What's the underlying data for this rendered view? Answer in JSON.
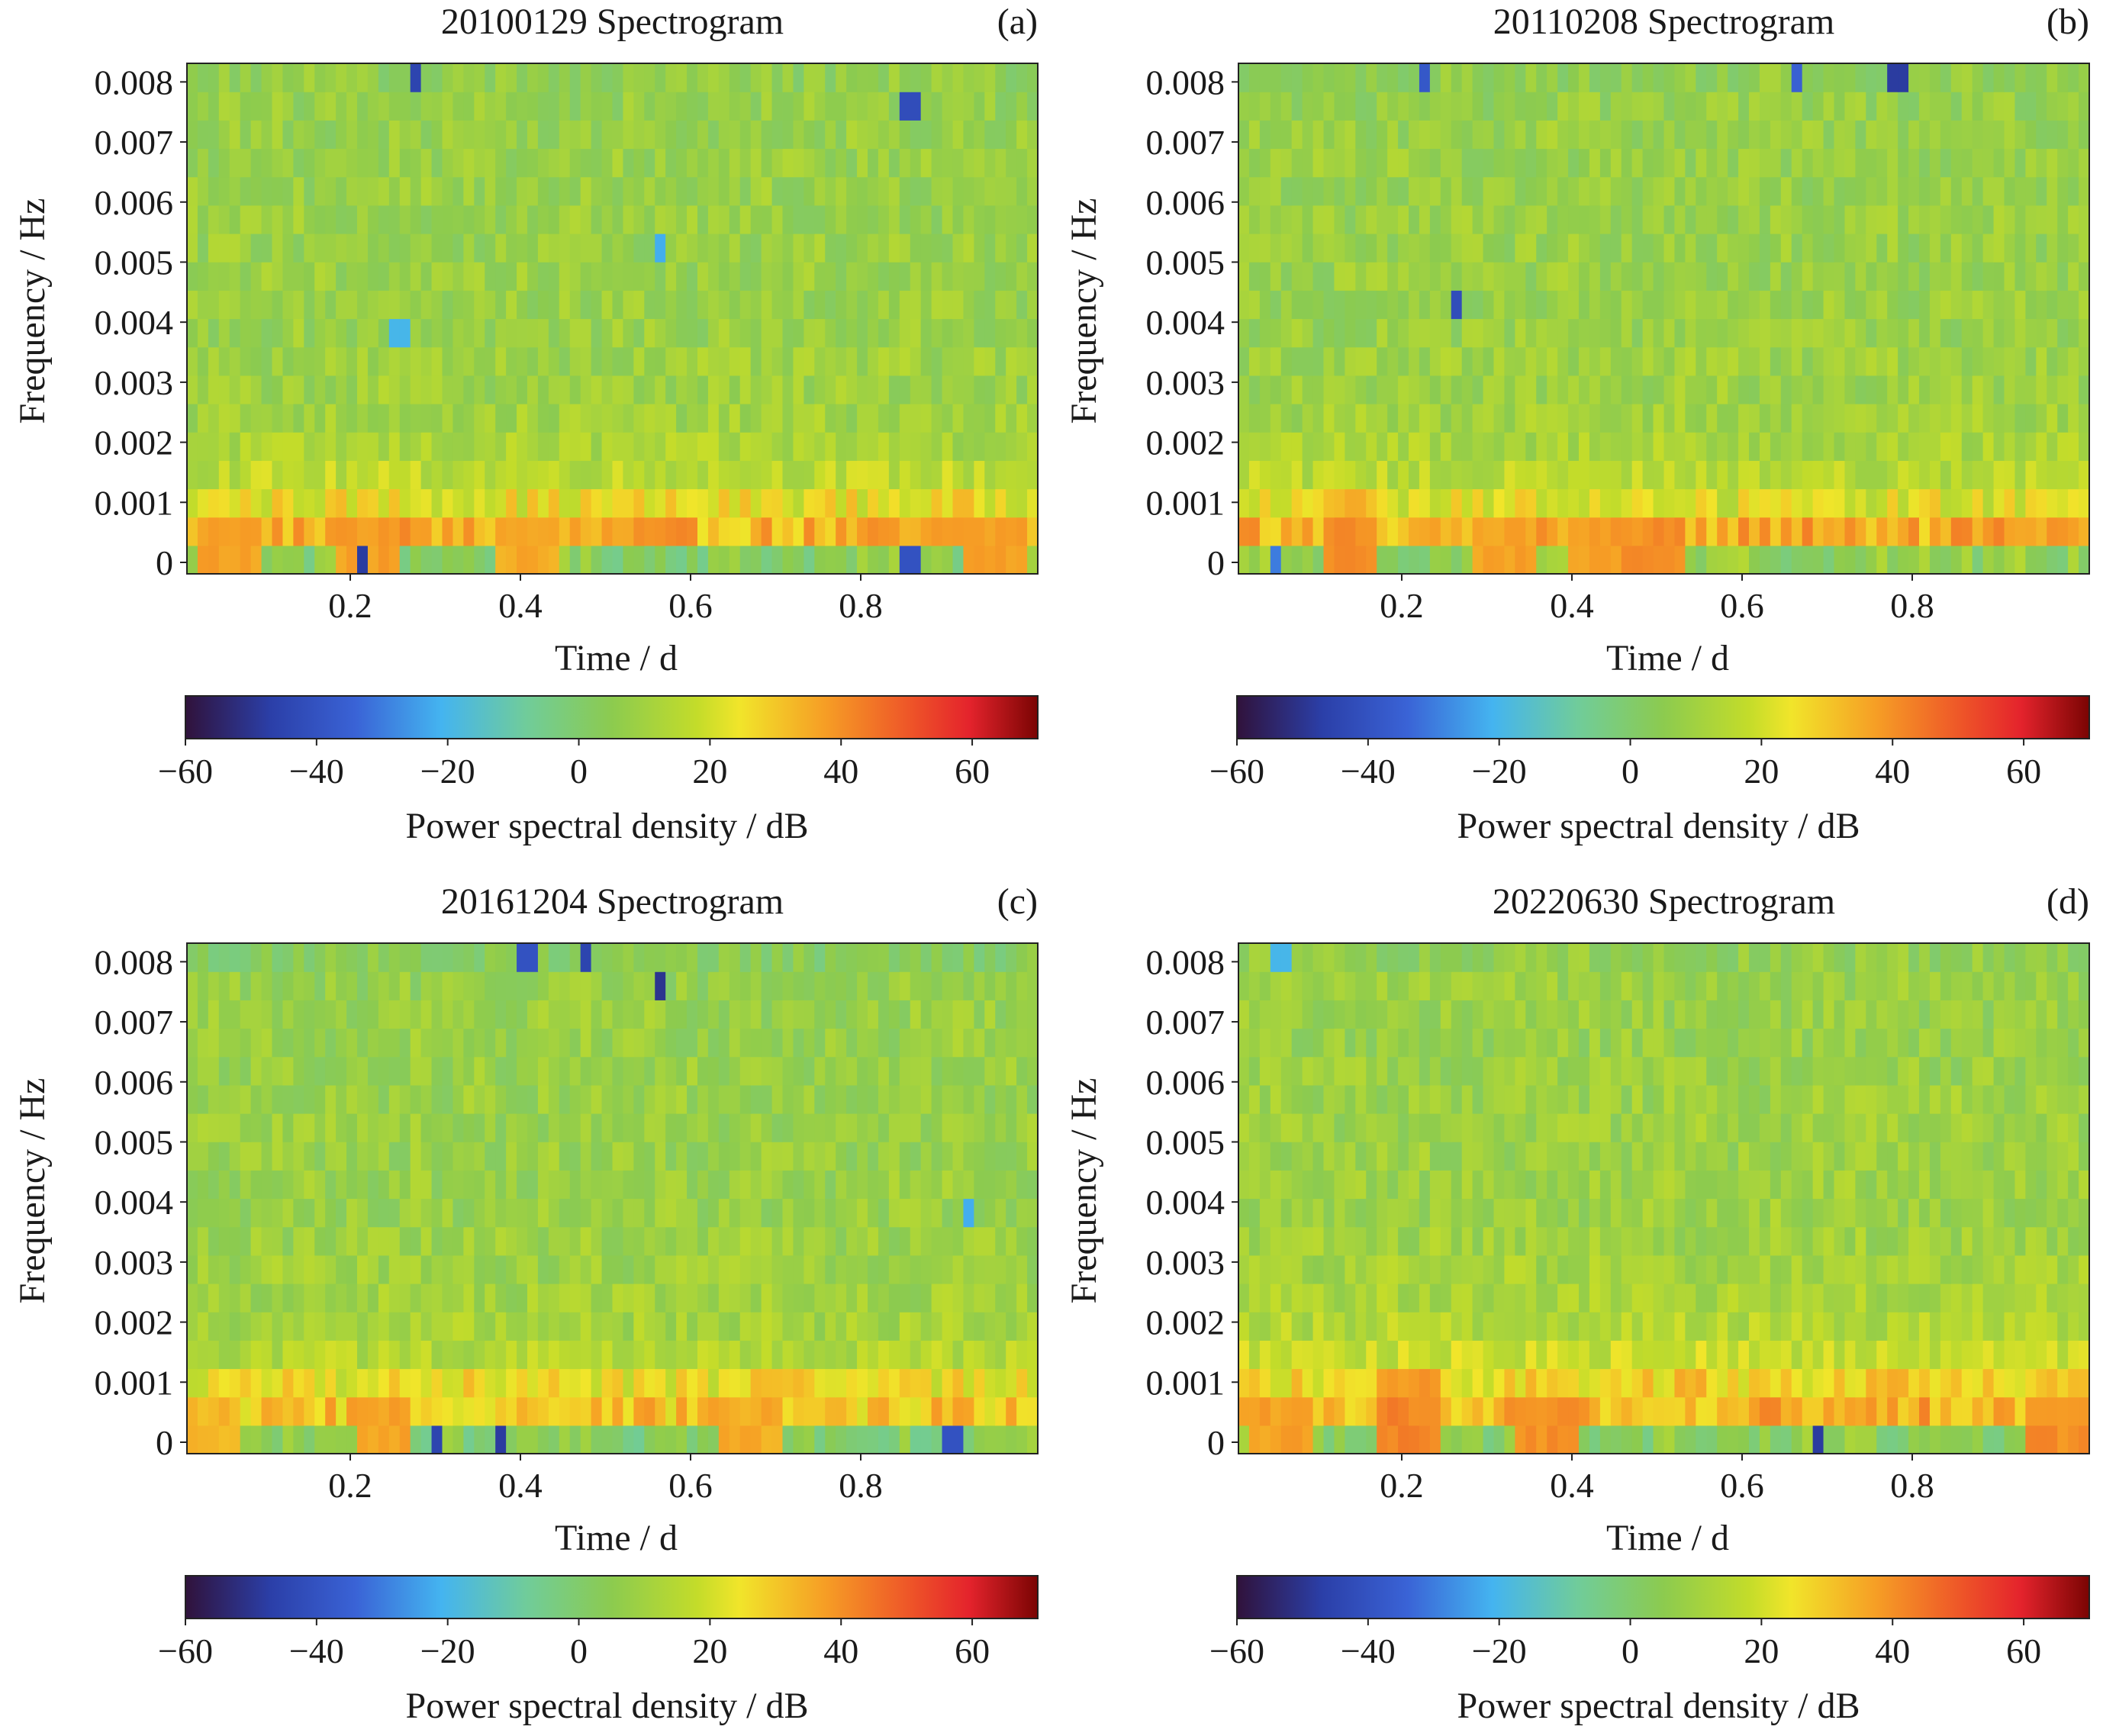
{
  "figure": {
    "colorbar_label": "Power spectral density / dB",
    "colorbar_ticks": [
      -60,
      -40,
      -20,
      0,
      20,
      40,
      60
    ],
    "colorbar_range": [
      -60,
      70
    ],
    "colormap": "turbo-like",
    "x_tick_values": [
      0.2,
      0.4,
      0.6,
      0.8
    ],
    "y_tick_values": [
      0,
      0.001,
      0.002,
      0.003,
      0.004,
      0.005,
      0.006,
      0.007,
      0.008
    ]
  },
  "chart_data": [
    {
      "type": "heatmap",
      "panel_label": "(a)",
      "title": "20100129 Spectrogram",
      "xlabel": "Time / d",
      "ylabel": "Frequency / Hz",
      "xlim": [
        0,
        1
      ],
      "ylim": [
        0,
        0.0085
      ],
      "n_time_bins": 80,
      "n_freq_bins": 18,
      "row_means_db": [
        3,
        33,
        24,
        16,
        12,
        10,
        9,
        9,
        8,
        8,
        8,
        8,
        8,
        8,
        8,
        8,
        7,
        6
      ],
      "hot_spots": [
        {
          "t": 0.05,
          "f": 0.0005,
          "db": 37
        },
        {
          "t": 0.21,
          "f": 0.0005,
          "db": 37
        },
        {
          "t": 0.4,
          "f": 0.0005,
          "db": 35
        },
        {
          "t": 0.95,
          "f": 0.0005,
          "db": 37
        }
      ],
      "cold_spots": [
        {
          "t": 0.21,
          "f": 0.0,
          "db": -48
        },
        {
          "t": 0.265,
          "f": 0.0085,
          "db": -45
        },
        {
          "t": 0.85,
          "f": 0.0076,
          "db": -42
        },
        {
          "t": 0.85,
          "f": 0.0,
          "db": -40
        },
        {
          "t": 0.555,
          "f": 0.0054,
          "db": -22
        },
        {
          "t": 0.25,
          "f": 0.0042,
          "db": -20
        }
      ]
    },
    {
      "type": "heatmap",
      "panel_label": "(b)",
      "title": "20110208 Spectrogram",
      "xlabel": "Time / d",
      "ylabel": "Frequency / Hz",
      "xlim": [
        0,
        1
      ],
      "ylim": [
        0,
        0.0085
      ],
      "n_time_bins": 80,
      "n_freq_bins": 18,
      "row_means_db": [
        6,
        34,
        22,
        15,
        12,
        10,
        9,
        9,
        8,
        8,
        8,
        8,
        8,
        8,
        8,
        8,
        7,
        6
      ],
      "hot_spots": [
        {
          "t": 0.13,
          "f": 0.0005,
          "db": 40
        },
        {
          "t": 0.13,
          "f": 0.001,
          "db": 33
        },
        {
          "t": 0.31,
          "f": 0.0005,
          "db": 37
        },
        {
          "t": 0.42,
          "f": 0.0005,
          "db": 38
        },
        {
          "t": 0.49,
          "f": 0.0005,
          "db": 40
        }
      ],
      "cold_spots": [
        {
          "t": 0.22,
          "f": 0.0085,
          "db": -38
        },
        {
          "t": 0.775,
          "f": 0.0085,
          "db": -48
        },
        {
          "t": 0.26,
          "f": 0.0046,
          "db": -42
        },
        {
          "t": 0.04,
          "f": 0.0,
          "db": -30
        },
        {
          "t": 0.66,
          "f": 0.0085,
          "db": -35
        }
      ]
    },
    {
      "type": "heatmap",
      "panel_label": "(c)",
      "title": "20161204 Spectrogram",
      "xlabel": "Time / d",
      "ylabel": "Frequency / Hz",
      "xlim": [
        0,
        1
      ],
      "ylim": [
        0,
        0.0085
      ],
      "n_time_bins": 80,
      "n_freq_bins": 18,
      "row_means_db": [
        2,
        30,
        24,
        14,
        11,
        10,
        9,
        9,
        8,
        8,
        8,
        8,
        8,
        8,
        8,
        8,
        7,
        3
      ],
      "hot_spots": [
        {
          "t": 0.23,
          "f": 0.0005,
          "db": 36
        },
        {
          "t": 0.66,
          "f": 0.0005,
          "db": 35
        },
        {
          "t": 0.03,
          "f": 0.0005,
          "db": 33
        }
      ],
      "cold_spots": [
        {
          "t": 0.29,
          "f": 0.0,
          "db": -45
        },
        {
          "t": 0.37,
          "f": 0.0,
          "db": -48
        },
        {
          "t": 0.4,
          "f": 0.0085,
          "db": -40
        },
        {
          "t": 0.47,
          "f": 0.0085,
          "db": -45
        },
        {
          "t": 0.555,
          "f": 0.0079,
          "db": -50
        },
        {
          "t": 0.9,
          "f": 0.0,
          "db": -40
        },
        {
          "t": 0.92,
          "f": 0.0038,
          "db": -22
        }
      ]
    },
    {
      "type": "heatmap",
      "panel_label": "(d)",
      "title": "20220630 Spectrogram",
      "xlabel": "Time / d",
      "ylabel": "Frequency / Hz",
      "xlim": [
        0,
        1
      ],
      "ylim": [
        0,
        0.0085
      ],
      "n_time_bins": 80,
      "n_freq_bins": 18,
      "row_means_db": [
        4,
        34,
        27,
        18,
        14,
        12,
        11,
        10,
        9,
        9,
        9,
        9,
        9,
        8,
        8,
        8,
        8,
        6
      ],
      "hot_spots": [
        {
          "t": 0.2,
          "f": 0.0005,
          "db": 42
        },
        {
          "t": 0.2,
          "f": 0.001,
          "db": 38
        },
        {
          "t": 0.36,
          "f": 0.0005,
          "db": 40
        },
        {
          "t": 0.96,
          "f": 0.0005,
          "db": 40
        },
        {
          "t": 0.05,
          "f": 0.0005,
          "db": 37
        }
      ],
      "cold_spots": [
        {
          "t": 0.68,
          "f": 0.0,
          "db": -48
        },
        {
          "t": 0.05,
          "f": 0.0085,
          "db": -20
        }
      ]
    }
  ]
}
